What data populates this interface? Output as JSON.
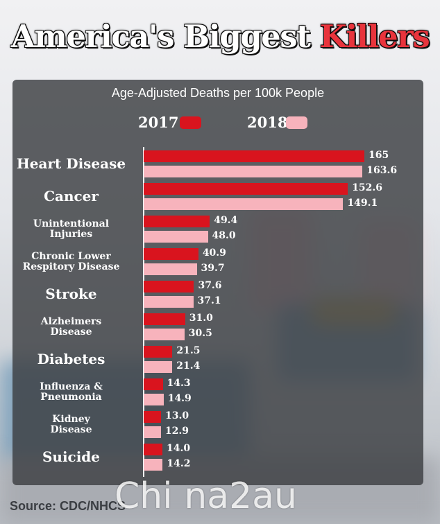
{
  "title": {
    "main": "America's Biggest",
    "accent": "Killers"
  },
  "subtitle": "Age-Adjusted Deaths per 100k People",
  "source": "Source: CDC/NHCS",
  "watermark": "Chi na2au",
  "colors": {
    "y2017": "#d9141e",
    "y2018": "#f7b3bc",
    "panel": "#3c3e42"
  },
  "chart_data": {
    "type": "bar",
    "orientation": "horizontal",
    "title": "America's Biggest Killers",
    "subtitle": "Age-Adjusted Deaths per 100k People",
    "legend_position": "top",
    "grid": false,
    "categories": [
      {
        "lines": [
          "Heart Disease"
        ],
        "size": "big"
      },
      {
        "lines": [
          "Cancer"
        ],
        "size": "big"
      },
      {
        "lines": [
          "Unintentional",
          "Injuries"
        ],
        "size": "small"
      },
      {
        "lines": [
          "Chronic Lower",
          "Respitory Disease"
        ],
        "size": "small"
      },
      {
        "lines": [
          "Stroke"
        ],
        "size": "big"
      },
      {
        "lines": [
          "Alzheimers",
          "Disease"
        ],
        "size": "small"
      },
      {
        "lines": [
          "Diabetes"
        ],
        "size": "big"
      },
      {
        "lines": [
          "Influenza &",
          "Pneumonia"
        ],
        "size": "small"
      },
      {
        "lines": [
          "Kidney",
          "Disease"
        ],
        "size": "small"
      },
      {
        "lines": [
          "Suicide"
        ],
        "size": "big"
      }
    ],
    "series": [
      {
        "name": "2017",
        "color": "#d9141e",
        "values": [
          165,
          152.6,
          49.4,
          40.9,
          37.6,
          31.0,
          21.5,
          14.3,
          13.0,
          14.0
        ],
        "labels": [
          "165",
          "152.6",
          "49.4",
          "40.9",
          "37.6",
          "31.0",
          "21.5",
          "14.3",
          "13.0",
          "14.0"
        ]
      },
      {
        "name": "2018",
        "color": "#f7b3bc",
        "values": [
          163.6,
          149.1,
          48.0,
          39.7,
          37.1,
          30.5,
          21.4,
          14.9,
          12.9,
          14.2
        ],
        "labels": [
          "163.6",
          "149.1",
          "48.0",
          "39.7",
          "37.1",
          "30.5",
          "21.4",
          "14.9",
          "12.9",
          "14.2"
        ]
      }
    ]
  }
}
